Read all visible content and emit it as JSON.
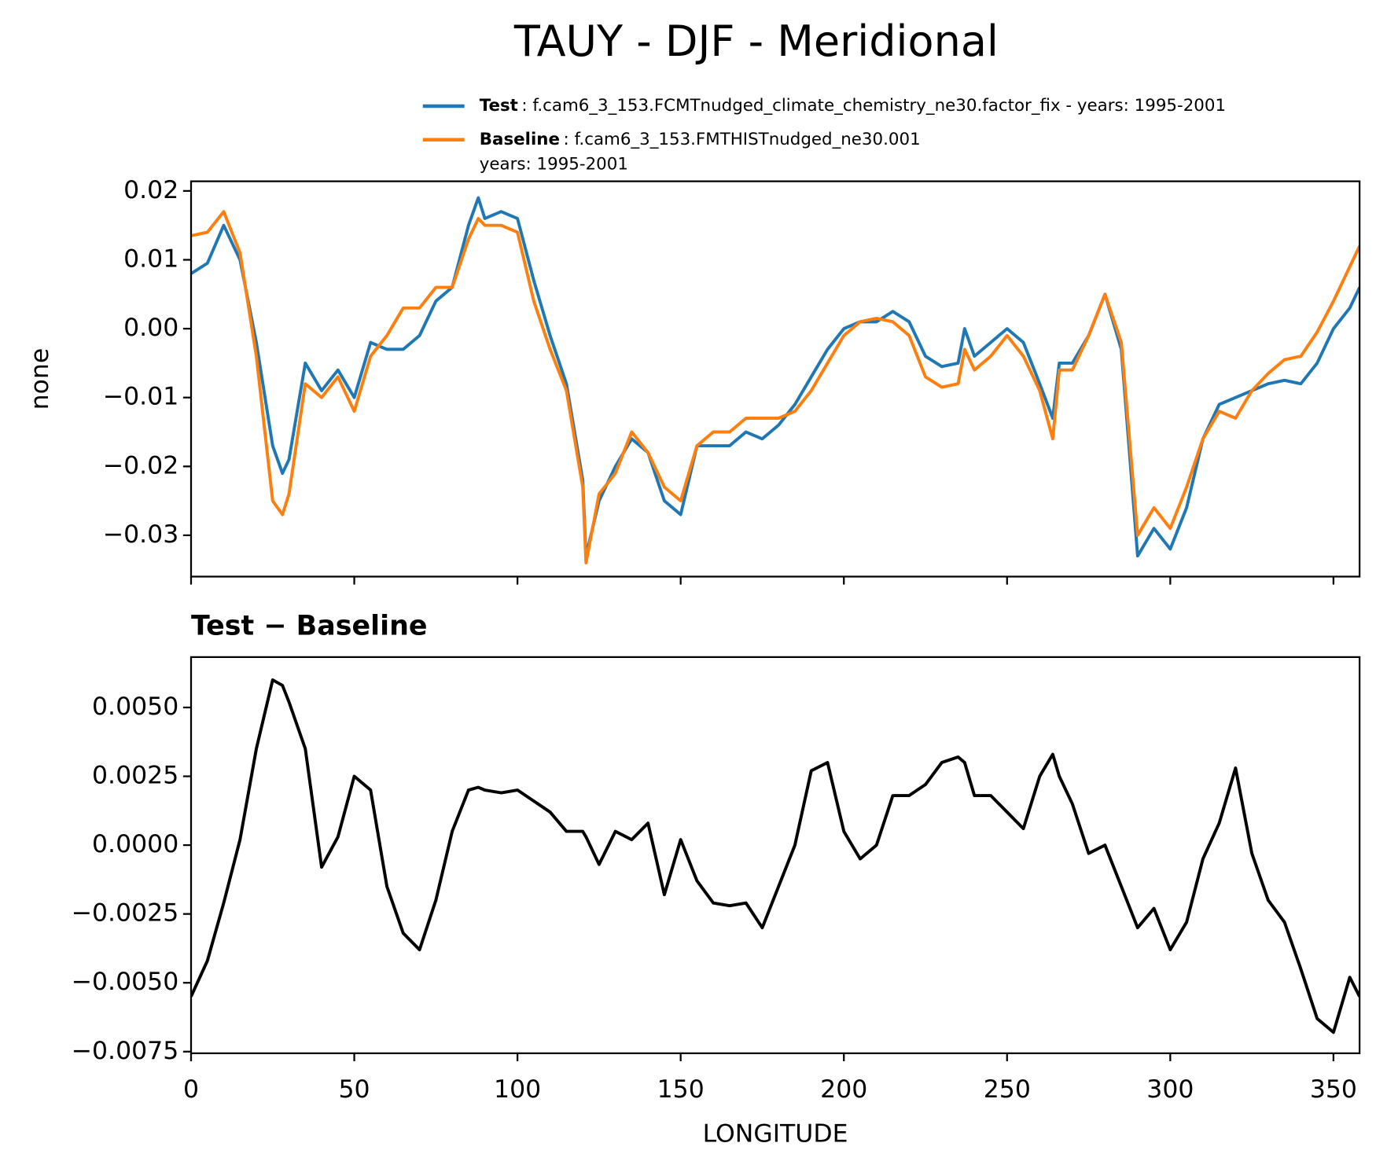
{
  "chart_data": [
    {
      "type": "line",
      "title": "TAUY - DJF - Meridional",
      "ylabel": "none",
      "x": [
        0,
        5,
        10,
        15,
        20,
        25,
        28,
        30,
        35,
        40,
        45,
        50,
        55,
        60,
        65,
        70,
        75,
        80,
        85,
        88,
        90,
        95,
        100,
        105,
        110,
        115,
        120,
        121,
        125,
        130,
        135,
        140,
        145,
        150,
        155,
        160,
        165,
        170,
        175,
        180,
        185,
        190,
        195,
        200,
        205,
        210,
        215,
        220,
        225,
        230,
        235,
        237,
        240,
        245,
        250,
        255,
        260,
        264,
        266,
        270,
        275,
        280,
        285,
        290,
        295,
        300,
        305,
        310,
        315,
        320,
        325,
        330,
        335,
        340,
        345,
        350,
        355,
        358
      ],
      "series": [
        {
          "name": "Test",
          "description": [
            ": f.cam6_3_153.FCMTnudged_climate_chemistry_ne30.factor_fix - years: 1995-2001"
          ],
          "color": "#1f77b4",
          "values": [
            0.008,
            0.0095,
            0.015,
            0.01,
            -0.002,
            -0.017,
            -0.021,
            -0.019,
            -0.005,
            -0.009,
            -0.006,
            -0.01,
            -0.002,
            -0.003,
            -0.003,
            -0.001,
            0.004,
            0.006,
            0.015,
            0.019,
            0.016,
            0.017,
            0.016,
            0.007,
            -0.001,
            -0.008,
            -0.022,
            -0.033,
            -0.025,
            -0.02,
            -0.016,
            -0.018,
            -0.025,
            -0.027,
            -0.017,
            -0.017,
            -0.017,
            -0.015,
            -0.016,
            -0.014,
            -0.011,
            -0.007,
            -0.003,
            0.0,
            0.001,
            0.001,
            0.0025,
            0.001,
            -0.004,
            -0.0055,
            -0.005,
            0.0,
            -0.004,
            -0.002,
            0.0,
            -0.002,
            -0.008,
            -0.013,
            -0.005,
            -0.005,
            -0.001,
            0.005,
            -0.003,
            -0.033,
            -0.029,
            -0.032,
            -0.026,
            -0.016,
            -0.011,
            -0.01,
            -0.009,
            -0.008,
            -0.0075,
            -0.008,
            -0.005,
            0.0,
            0.003,
            0.006
          ]
        },
        {
          "name": "Baseline",
          "description": [
            ": f.cam6_3_153.FMTHISTnudged_ne30.001",
            "years: 1995-2001"
          ],
          "color": "#ff7f0e",
          "values": [
            0.0135,
            0.014,
            0.017,
            0.011,
            -0.004,
            -0.025,
            -0.027,
            -0.024,
            -0.008,
            -0.01,
            -0.007,
            -0.012,
            -0.004,
            -0.001,
            0.003,
            0.003,
            0.006,
            0.006,
            0.013,
            0.016,
            0.015,
            0.015,
            0.014,
            0.004,
            -0.003,
            -0.009,
            -0.023,
            -0.034,
            -0.024,
            -0.021,
            -0.015,
            -0.018,
            -0.023,
            -0.025,
            -0.017,
            -0.015,
            -0.015,
            -0.013,
            -0.013,
            -0.013,
            -0.012,
            -0.009,
            -0.005,
            -0.001,
            0.001,
            0.0015,
            0.001,
            -0.001,
            -0.007,
            -0.0085,
            -0.008,
            -0.003,
            -0.006,
            -0.004,
            -0.001,
            -0.004,
            -0.009,
            -0.016,
            -0.006,
            -0.006,
            -0.001,
            0.005,
            -0.002,
            -0.03,
            -0.026,
            -0.029,
            -0.023,
            -0.016,
            -0.012,
            -0.013,
            -0.009,
            -0.0065,
            -0.0045,
            -0.004,
            -0.0005,
            0.004,
            0.009,
            0.012
          ]
        }
      ],
      "xlim": [
        0,
        358
      ],
      "xticks": [
        0,
        50,
        100,
        150,
        200,
        250,
        300,
        350
      ],
      "ylim": [
        -0.036,
        0.0214
      ],
      "yticks": [
        {
          "value": -0.03,
          "label": "−0.03"
        },
        {
          "value": -0.02,
          "label": "−0.02"
        },
        {
          "value": -0.01,
          "label": "−0.01"
        },
        {
          "value": 0,
          "label": "0.00"
        },
        0.01,
        0.02
      ]
    },
    {
      "type": "line",
      "title": "Test − Baseline",
      "xlabel": "LONGITUDE",
      "x": [
        0,
        5,
        10,
        15,
        20,
        25,
        28,
        30,
        35,
        40,
        45,
        50,
        55,
        60,
        65,
        70,
        75,
        80,
        85,
        88,
        90,
        95,
        100,
        105,
        110,
        115,
        120,
        121,
        125,
        130,
        135,
        140,
        145,
        150,
        155,
        160,
        165,
        170,
        175,
        180,
        185,
        190,
        195,
        200,
        205,
        210,
        215,
        220,
        225,
        230,
        235,
        237,
        240,
        245,
        250,
        255,
        260,
        264,
        266,
        270,
        275,
        280,
        285,
        290,
        295,
        300,
        305,
        310,
        315,
        320,
        325,
        330,
        335,
        340,
        345,
        350,
        355,
        358
      ],
      "series": [
        {
          "color": "#000000",
          "values": [
            -0.0055,
            -0.0042,
            -0.0021,
            0.0002,
            0.0035,
            0.006,
            0.0058,
            0.0052,
            0.0035,
            -0.0008,
            0.0003,
            0.0025,
            0.002,
            -0.0015,
            -0.0032,
            -0.0038,
            -0.002,
            0.0005,
            0.002,
            0.0021,
            0.002,
            0.0019,
            0.002,
            0.0016,
            0.0012,
            0.0005,
            0.0005,
            0.0003,
            -0.0007,
            0.0005,
            0.0002,
            0.0008,
            -0.0018,
            0.0002,
            -0.0013,
            -0.0021,
            -0.0022,
            -0.0021,
            -0.003,
            -0.0015,
            0.0,
            0.0027,
            0.003,
            0.0005,
            -0.0005,
            0.0,
            0.0018,
            0.0018,
            0.0022,
            0.003,
            0.0032,
            0.003,
            0.0018,
            0.0018,
            0.0012,
            0.0006,
            0.0025,
            0.0033,
            0.0025,
            0.0015,
            -0.0003,
            0.0,
            -0.0015,
            -0.003,
            -0.0023,
            -0.0038,
            -0.0028,
            -0.0005,
            0.0008,
            0.0028,
            -0.0003,
            -0.002,
            -0.0028,
            -0.0045,
            -0.0063,
            -0.0068,
            -0.0048,
            -0.0055
          ]
        }
      ],
      "xlim": [
        0,
        358
      ],
      "xticks": [
        0,
        50,
        100,
        150,
        200,
        250,
        300,
        350
      ],
      "ylim": [
        -0.00756,
        0.00683
      ],
      "yticks": [
        {
          "value": -0.0075,
          "label": "−0.0075"
        },
        {
          "value": -0.005,
          "label": "−0.0050"
        },
        {
          "value": -0.0025,
          "label": "−0.0025"
        },
        {
          "value": 0,
          "label": "0.0000"
        },
        {
          "value": 0.0025,
          "label": "0.0025"
        },
        {
          "value": 0.005,
          "label": "0.0050"
        }
      ]
    }
  ]
}
